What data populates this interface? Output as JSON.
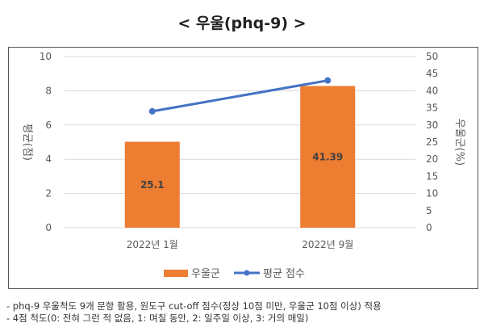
{
  "title": "< 우울(phq-9) >",
  "chart_data": {
    "type": "bar+line",
    "categories": [
      "2022년 1월",
      "2022년 9월"
    ],
    "series": [
      {
        "name": "우울군",
        "type": "bar",
        "axis": "right",
        "values": [
          25.1,
          41.39
        ],
        "labels": [
          "25.1",
          "41.39"
        ],
        "color": "#ED7D31"
      },
      {
        "name": "평균 점수",
        "type": "line",
        "axis": "left",
        "values": [
          6.8,
          8.6
        ],
        "color": "#4472C4"
      }
    ],
    "ylabel_left": "평균(점)",
    "ylabel_right": "우울군(%)",
    "ylim_left": [
      0,
      10
    ],
    "yticks_left": [
      "0",
      "2",
      "4",
      "6",
      "8",
      "10"
    ],
    "ylim_right": [
      0,
      50
    ],
    "yticks_right": [
      "0",
      "5",
      "10",
      "15",
      "20",
      "25",
      "30",
      "35",
      "40",
      "45",
      "50"
    ],
    "grid": true,
    "legend": "bottom"
  },
  "notes": [
    "- phq-9 우울척도 9개 문항 활용, 원도구 cut-off 점수(정상 10점 미만, 우울군 10점 이상) 적용",
    "- 4점 척도(0: 전혀 그런 적 없음, 1: 며칠 동안, 2: 일주일 이상, 3: 거의 매일)"
  ]
}
